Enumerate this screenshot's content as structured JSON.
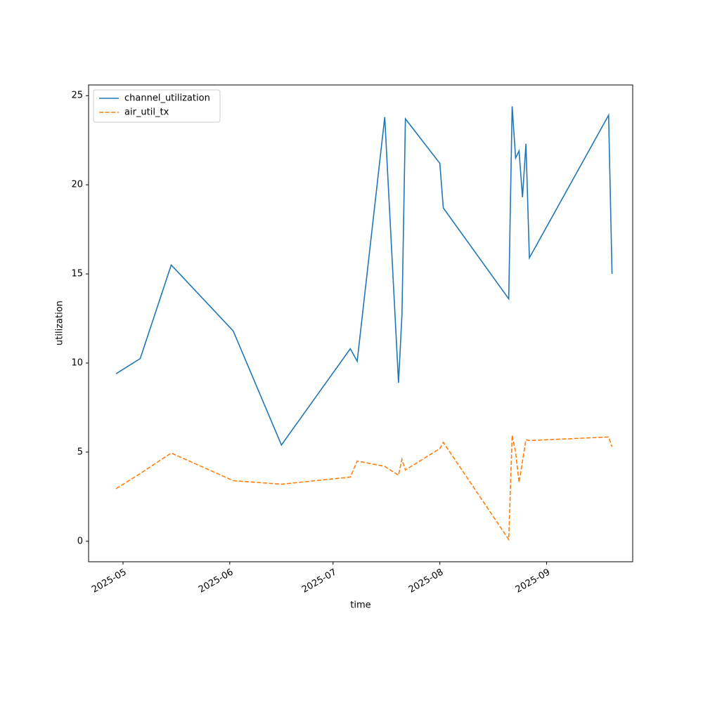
{
  "chart_data": {
    "type": "line",
    "x_label": "time",
    "y_label": "utilization",
    "x": [
      "2025-04-29",
      "2025-05-06",
      "2025-05-15",
      "2025-06-02",
      "2025-06-16",
      "2025-07-06",
      "2025-07-08",
      "2025-07-16",
      "2025-07-20",
      "2025-07-21",
      "2025-07-22",
      "2025-08-01",
      "2025-08-02",
      "2025-08-21",
      "2025-08-22",
      "2025-08-23",
      "2025-08-24",
      "2025-08-25",
      "2025-08-26",
      "2025-08-27",
      "2025-09-19",
      "2025-09-20"
    ],
    "series": [
      {
        "name": "channel_utilization",
        "color": "#1f77b4",
        "dash": "solid",
        "values": [
          9.4,
          10.25,
          15.5,
          11.8,
          5.4,
          10.8,
          10.1,
          23.8,
          8.9,
          12.7,
          23.7,
          21.2,
          18.7,
          13.6,
          24.4,
          21.5,
          21.9,
          19.3,
          22.3,
          15.9,
          23.9,
          15.0
        ]
      },
      {
        "name": "air_util_tx",
        "color": "#ff7f0e",
        "dash": "dashed",
        "values": [
          2.95,
          3.8,
          4.95,
          3.4,
          3.2,
          3.6,
          4.5,
          4.2,
          3.7,
          4.6,
          4.0,
          5.2,
          5.55,
          0.1,
          5.95,
          5.0,
          3.3,
          4.5,
          5.7,
          5.65,
          5.85,
          5.3
        ]
      }
    ],
    "xlim": [
      "2025-04-21",
      "2025-09-26"
    ],
    "xticks": [
      "2025-05",
      "2025-06",
      "2025-07",
      "2025-08",
      "2025-09"
    ],
    "ylim": [
      -1.15,
      25.6
    ],
    "yticks": [
      0,
      5,
      10,
      15,
      20,
      25
    ],
    "grid": false,
    "legend": "upper left"
  }
}
